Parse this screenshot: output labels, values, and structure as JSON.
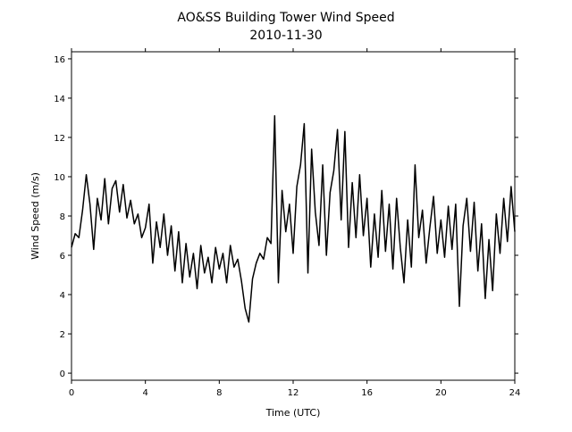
{
  "chart_data": {
    "type": "line",
    "title": "AO&SS Building Tower Wind Speed",
    "subtitle": "2010-11-30",
    "x_label": "Time (UTC)",
    "y_label": "Wind Speed (m/s)",
    "xlim": [
      0,
      24
    ],
    "xticks": [
      0,
      4,
      8,
      12,
      16,
      20,
      24
    ],
    "ylim": [
      -0.36,
      16.36
    ],
    "yticks": [
      0,
      2,
      4,
      6,
      8,
      10,
      12,
      14,
      16
    ],
    "grid": false,
    "series": [
      {
        "color": "#000000",
        "x": [
          0,
          0.2,
          0.4,
          0.6,
          0.8,
          1,
          1.2,
          1.4,
          1.6,
          1.8,
          2,
          2.2,
          2.4,
          2.6,
          2.8,
          3,
          3.2,
          3.4,
          3.6,
          3.8,
          4,
          4.2,
          4.4,
          4.6,
          4.8,
          5,
          5.2,
          5.4,
          5.6,
          5.8,
          6,
          6.2,
          6.4,
          6.6,
          6.8,
          7,
          7.2,
          7.4,
          7.6,
          7.8,
          8,
          8.2,
          8.4,
          8.6,
          8.8,
          9,
          9.2,
          9.4,
          9.6,
          9.8,
          10,
          10.2,
          10.4,
          10.6,
          10.8,
          11,
          11.2,
          11.4,
          11.6,
          11.8,
          12,
          12.2,
          12.4,
          12.6,
          12.8,
          13,
          13.2,
          13.4,
          13.6,
          13.8,
          14,
          14.2,
          14.4,
          14.6,
          14.8,
          15,
          15.2,
          15.4,
          15.6,
          15.8,
          16,
          16.2,
          16.4,
          16.6,
          16.8,
          17,
          17.2,
          17.4,
          17.6,
          17.8,
          18,
          18.2,
          18.4,
          18.6,
          18.8,
          19,
          19.2,
          19.4,
          19.6,
          19.8,
          20,
          20.2,
          20.4,
          20.6,
          20.8,
          21,
          21.2,
          21.4,
          21.6,
          21.8,
          22,
          22.2,
          22.4,
          22.6,
          22.8,
          23,
          23.2,
          23.4,
          23.6,
          23.8,
          24
        ],
        "values": [
          6.4,
          7.1,
          6.9,
          8.3,
          10.1,
          8.6,
          6.3,
          8.9,
          7.8,
          9.9,
          7.6,
          9.4,
          9.8,
          8.2,
          9.6,
          7.9,
          8.8,
          7.6,
          8.1,
          6.9,
          7.4,
          8.6,
          5.6,
          7.7,
          6.4,
          8.1,
          6.0,
          7.5,
          5.2,
          7.2,
          4.6,
          6.6,
          4.9,
          6.1,
          4.3,
          6.5,
          5.1,
          5.9,
          4.6,
          6.4,
          5.3,
          6.1,
          4.6,
          6.5,
          5.4,
          5.8,
          4.7,
          3.3,
          2.6,
          4.8,
          5.6,
          6.1,
          5.8,
          6.9,
          6.6,
          13.1,
          4.6,
          9.3,
          7.2,
          8.6,
          6.1,
          9.5,
          10.6,
          12.7,
          5.1,
          11.4,
          8.2,
          6.5,
          10.6,
          6.0,
          9.2,
          10.3,
          12.4,
          7.8,
          12.3,
          6.4,
          9.7,
          6.9,
          10.1,
          7.0,
          8.9,
          5.4,
          8.1,
          5.9,
          9.3,
          6.2,
          8.6,
          5.3,
          8.9,
          6.4,
          4.6,
          7.8,
          5.4,
          10.6,
          6.9,
          8.3,
          5.6,
          7.4,
          9.0,
          6.1,
          7.8,
          5.9,
          8.5,
          6.3,
          8.6,
          3.4,
          7.5,
          8.9,
          6.2,
          8.7,
          5.2,
          7.6,
          3.8,
          6.8,
          4.2,
          8.1,
          6.1,
          8.9,
          6.7,
          9.5,
          7.2
        ]
      }
    ]
  }
}
